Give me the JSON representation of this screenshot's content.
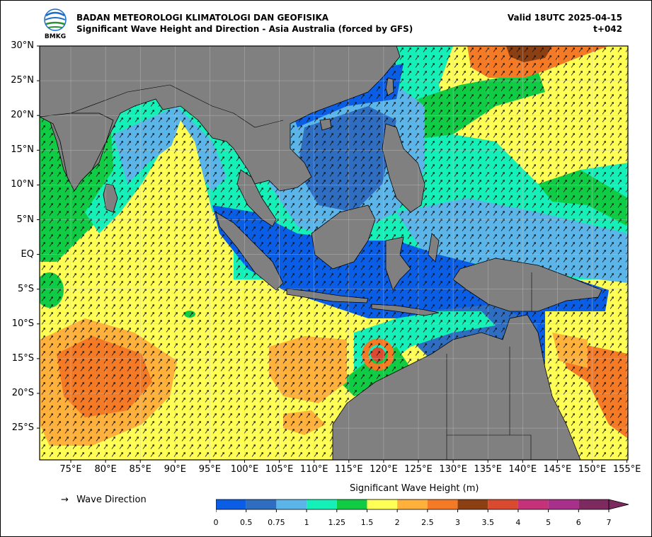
{
  "header": {
    "agency": "BADAN METEOROLOGI KLIMATOLOGI DAN GEOFISIKA",
    "product": "Significant Wave Height and Direction - Asia Australia (forced by GFS)",
    "valid": "Valid 18UTC 2025-04-15",
    "step": "t+042",
    "logo_text": "BMKG"
  },
  "map": {
    "lat_labels": [
      "30°N",
      "25°N",
      "20°N",
      "15°N",
      "10°N",
      "5°N",
      "EQ",
      "5°S",
      "10°S",
      "15°S",
      "20°S",
      "25°S"
    ],
    "lon_labels": [
      "75°E",
      "80°E",
      "85°E",
      "90°E",
      "95°E",
      "100°E",
      "105°E",
      "110°E",
      "115°E",
      "120°E",
      "125°E",
      "130°E",
      "135°E",
      "140°E",
      "145°E",
      "150°E",
      "155°E"
    ],
    "land_color": "#808080",
    "dominant_arrow_direction": "north-northeast"
  },
  "legend": {
    "wave_direction_label": "Wave Direction",
    "colorbar_title": "Significant Wave Height (m)",
    "ticks": [
      "0",
      "0.5",
      "0.75",
      "1",
      "1.25",
      "1.5",
      "2",
      "2.5",
      "3",
      "3.5",
      "4",
      "5",
      "6",
      "7"
    ],
    "colors": [
      "#0a5ee6",
      "#2f6dc0",
      "#5bb5e8",
      "#15f0b8",
      "#10cc44",
      "#ffff55",
      "#ffb13c",
      "#f57a25",
      "#8b3f12",
      "#d94a30",
      "#c4337a",
      "#a8308a",
      "#7d2a60"
    ]
  }
}
